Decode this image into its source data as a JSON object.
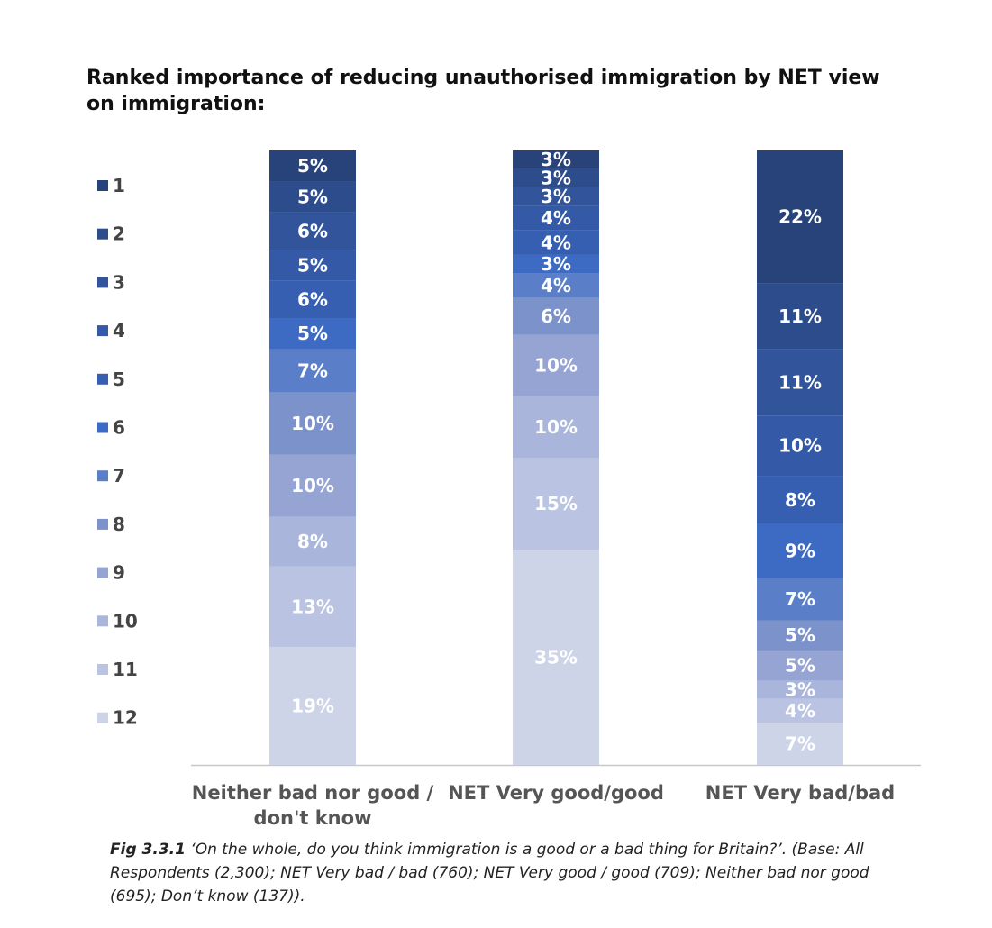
{
  "title": "Ranked importance of reducing unauthorised immigration by NET view on immigration:",
  "caption": {
    "fig_label": "Fig 3.3.1",
    "text": " ‘On the whole, do you think immigration is a good or a bad thing for Britain?’. (Base: All Respondents (2,300); NET Very bad / bad (760); NET Very good / good (709); Neither bad nor good (695); Don’t know (137))."
  },
  "chart_data": {
    "type": "bar",
    "stacked": true,
    "orientation": "vertical",
    "categories": [
      "Neither bad nor good / don't know",
      "NET Very good/good",
      "NET Very bad/bad"
    ],
    "series": [
      {
        "name": "1",
        "color": "#27437a",
        "values": [
          5,
          3,
          22
        ]
      },
      {
        "name": "2",
        "color": "#2d4c8b",
        "values": [
          5,
          3,
          11
        ]
      },
      {
        "name": "3",
        "color": "#31549a",
        "values": [
          6,
          3,
          11
        ]
      },
      {
        "name": "4",
        "color": "#3459a6",
        "values": [
          5,
          4,
          10
        ]
      },
      {
        "name": "5",
        "color": "#365fb2",
        "values": [
          6,
          4,
          8
        ]
      },
      {
        "name": "6",
        "color": "#3d6bc4",
        "values": [
          5,
          3,
          9
        ]
      },
      {
        "name": "7",
        "color": "#5a7fc8",
        "values": [
          7,
          4,
          7
        ]
      },
      {
        "name": "8",
        "color": "#7c92cb",
        "values": [
          10,
          6,
          5
        ]
      },
      {
        "name": "9",
        "color": "#95a4d3",
        "values": [
          10,
          10,
          5
        ]
      },
      {
        "name": "10",
        "color": "#a9b5da",
        "values": [
          8,
          10,
          3
        ]
      },
      {
        "name": "11",
        "color": "#bac3e1",
        "values": [
          13,
          15,
          4
        ]
      },
      {
        "name": "12",
        "color": "#ced4e8",
        "values": [
          19,
          35,
          7
        ]
      }
    ],
    "value_suffix": "%",
    "legend_position": "left",
    "grid": false
  }
}
